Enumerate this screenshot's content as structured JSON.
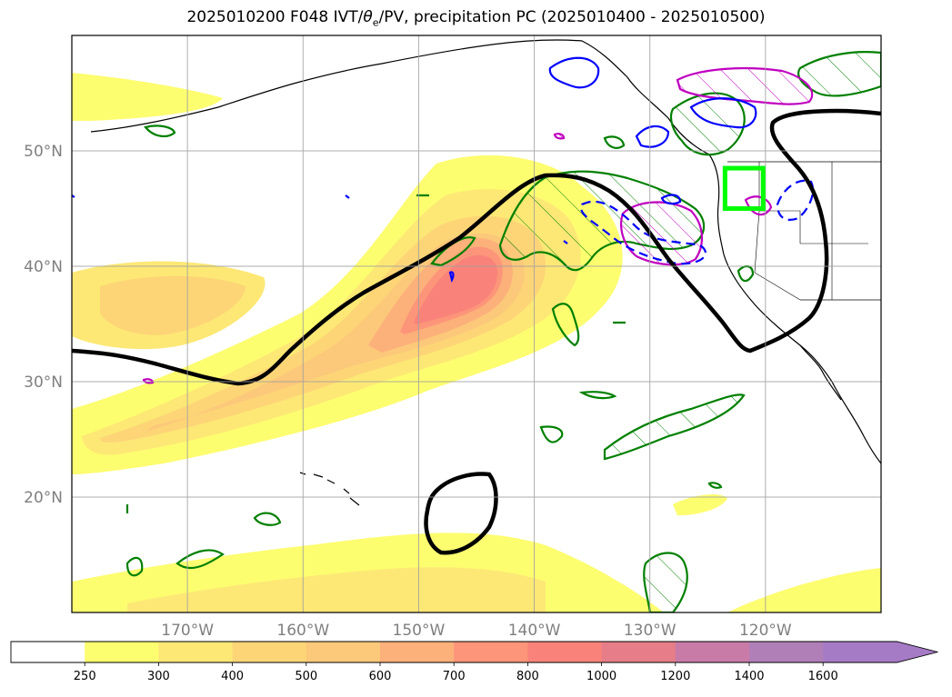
{
  "title_prefix": "2025010200 F048 IVT/",
  "title_theta": "θ",
  "title_sub": "e",
  "title_suffix": "/PV, precipitation PC (2025010400 - 2025010500)",
  "map": {
    "lon_range": [
      -180,
      -110
    ],
    "lat_range": [
      10,
      60
    ],
    "lon_ticks": [
      {
        "value": -170,
        "label": "170°W"
      },
      {
        "value": -160,
        "label": "160°W"
      },
      {
        "value": -150,
        "label": "150°W"
      },
      {
        "value": -140,
        "label": "140°W"
      },
      {
        "value": -130,
        "label": "130°W"
      },
      {
        "value": -120,
        "label": "120°W"
      }
    ],
    "lat_ticks": [
      {
        "value": 50,
        "label": "50°N"
      },
      {
        "value": 40,
        "label": "40°N"
      },
      {
        "value": 30,
        "label": "30°N"
      },
      {
        "value": 20,
        "label": "20°N"
      }
    ],
    "grid": true,
    "highlight_box": {
      "lon": [
        -123.5,
        -120.2
      ],
      "lat": [
        45.0,
        48.5
      ],
      "color": "#00ff00"
    }
  },
  "colorbar": {
    "levels": [
      "250",
      "300",
      "400",
      "500",
      "600",
      "700",
      "800",
      "1000",
      "1200",
      "1400",
      "1600"
    ],
    "colors": [
      "#ffffff",
      "#fdfd70",
      "#fde875",
      "#fdd577",
      "#fcc87a",
      "#fcb07a",
      "#fc9579",
      "#f9837a",
      "#e67d88",
      "#c97ba8",
      "#b17fb8",
      "#a67bc6"
    ],
    "extend": "max"
  },
  "colors": {
    "pv_contour": "#000000",
    "precip_contour": "#008000",
    "theta_contour": "#0000ff",
    "magenta_contour": "#c000c0",
    "coastline": "#000000"
  }
}
